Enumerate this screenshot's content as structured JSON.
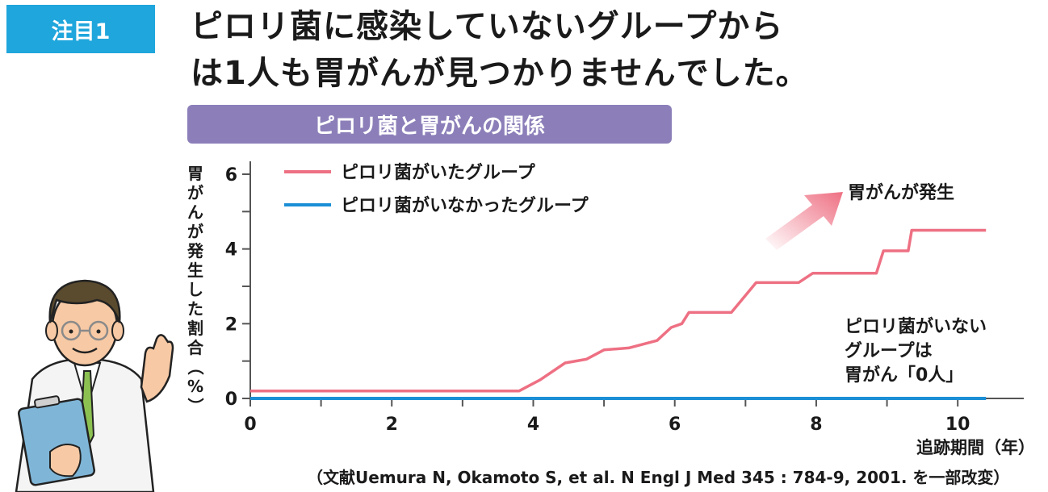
{
  "badge": "注目1",
  "headline": {
    "line1": "ピロリ菌に感染していないグループから",
    "line2": "は1人も胃がんが見つかりませんでした。"
  },
  "source": "（文献Uemura N, Okamoto S, et al. N Engl J Med 345 : 784-9, 2001. を一部改変）",
  "colors": {
    "accent_badge": "#1fa6dc",
    "title_bar": "#8c7fb9",
    "infected": "#ee7083",
    "uninfected": "#1b8fd6"
  },
  "chart_data": {
    "type": "line",
    "title": "ピロリ菌と胃がんの関係",
    "ylabel": "胃がんが発生した割合（%）",
    "xlabel": "追跡期間（年）",
    "xlim": [
      0,
      10.5
    ],
    "ylim": [
      0,
      6
    ],
    "xticks": [
      "0",
      "2",
      "4",
      "6",
      "8",
      "10"
    ],
    "yticks": [
      "0",
      "2",
      "4",
      "6"
    ],
    "legend_position": "top-left",
    "series": [
      {
        "name": "ピロリ菌がいたグループ",
        "color": "#ee7083",
        "x": [
          0,
          3.8,
          4.1,
          4.45,
          4.75,
          5.0,
          5.35,
          5.75,
          5.95,
          6.1,
          6.2,
          6.8,
          7.15,
          7.75,
          7.95,
          8.85,
          8.9,
          8.95,
          9.3,
          9.35,
          10.4
        ],
        "y": [
          0.2,
          0.2,
          0.5,
          0.95,
          1.05,
          1.3,
          1.35,
          1.55,
          1.9,
          2.0,
          2.3,
          2.3,
          3.1,
          3.1,
          3.35,
          3.35,
          3.65,
          3.95,
          3.95,
          4.5,
          4.5
        ]
      },
      {
        "name": "ピロリ菌がいなかったグループ",
        "color": "#1b8fd6",
        "x": [
          0,
          10.4
        ],
        "y": [
          0,
          0
        ]
      }
    ],
    "annotations": {
      "arrow_label": "胃がんが発生",
      "uninfected_note": [
        "ピロリ菌がいない",
        "グループは",
        "胃がん「0人」"
      ]
    }
  }
}
